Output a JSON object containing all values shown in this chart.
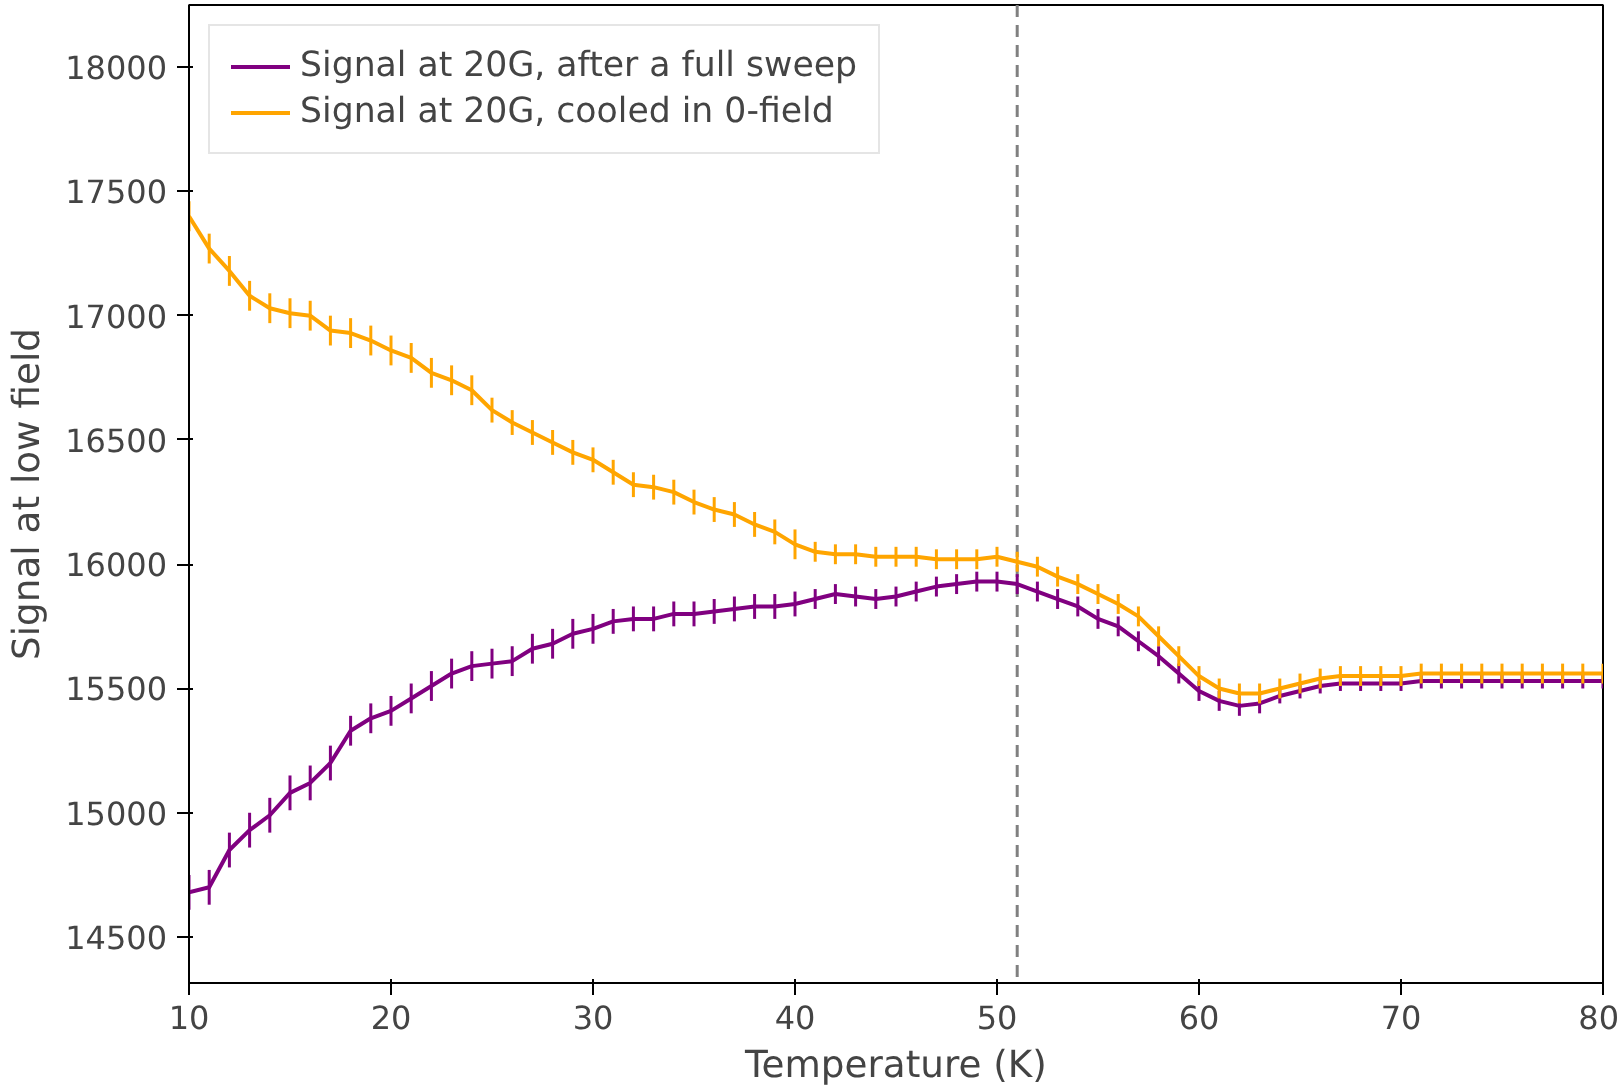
{
  "chart_data": {
    "type": "line",
    "xlabel": "Temperature (K)",
    "ylabel": "Signal at low field",
    "x": [
      10,
      11,
      12,
      13,
      14,
      15,
      16,
      17,
      18,
      19,
      20,
      21,
      22,
      23,
      24,
      25,
      26,
      27,
      28,
      29,
      30,
      31,
      32,
      33,
      34,
      35,
      36,
      37,
      38,
      39,
      40,
      41,
      42,
      43,
      44,
      45,
      46,
      47,
      48,
      49,
      50,
      51,
      52,
      53,
      54,
      55,
      56,
      57,
      58,
      59,
      60,
      61,
      62,
      63,
      64,
      65,
      66,
      67,
      68,
      69,
      70,
      71,
      72,
      73,
      74,
      75,
      76,
      77,
      78,
      79,
      80
    ],
    "series": [
      {
        "name": "Signal at 20G, after a full sweep",
        "color": "#800080",
        "values": [
          14680,
          14700,
          14850,
          14930,
          14990,
          15080,
          15120,
          15200,
          15330,
          15380,
          15410,
          15460,
          15510,
          15560,
          15590,
          15600,
          15610,
          15660,
          15680,
          15720,
          15740,
          15770,
          15780,
          15780,
          15800,
          15800,
          15810,
          15820,
          15830,
          15830,
          15840,
          15860,
          15880,
          15870,
          15860,
          15870,
          15890,
          15910,
          15920,
          15930,
          15930,
          15920,
          15890,
          15860,
          15830,
          15780,
          15750,
          15690,
          15630,
          15560,
          15490,
          15450,
          15430,
          15440,
          15470,
          15490,
          15510,
          15520,
          15520,
          15520,
          15520,
          15530,
          15530,
          15530,
          15530,
          15530,
          15530,
          15530,
          15530,
          15530,
          15530
        ],
        "errors": [
          70,
          70,
          70,
          70,
          70,
          70,
          70,
          70,
          60,
          60,
          60,
          60,
          60,
          60,
          60,
          60,
          60,
          60,
          60,
          60,
          60,
          50,
          50,
          50,
          50,
          50,
          50,
          50,
          50,
          50,
          50,
          40,
          40,
          40,
          40,
          40,
          40,
          40,
          40,
          40,
          40,
          40,
          40,
          40,
          40,
          40,
          40,
          40,
          40,
          40,
          40,
          40,
          40,
          40,
          30,
          30,
          30,
          30,
          30,
          30,
          30,
          30,
          30,
          30,
          30,
          30,
          30,
          30,
          30,
          30,
          30
        ]
      },
      {
        "name": "Signal at 20G, cooled in 0-field",
        "color": "#ffa500",
        "values": [
          17400,
          17270,
          17180,
          17080,
          17030,
          17010,
          17000,
          16940,
          16930,
          16900,
          16860,
          16830,
          16770,
          16740,
          16700,
          16620,
          16570,
          16530,
          16490,
          16450,
          16420,
          16370,
          16320,
          16310,
          16290,
          16250,
          16220,
          16200,
          16160,
          16130,
          16080,
          16050,
          16040,
          16040,
          16030,
          16030,
          16030,
          16020,
          16020,
          16020,
          16030,
          16010,
          15990,
          15950,
          15920,
          15880,
          15840,
          15790,
          15710,
          15630,
          15550,
          15500,
          15480,
          15480,
          15500,
          15520,
          15540,
          15550,
          15550,
          15550,
          15550,
          15560,
          15560,
          15560,
          15560,
          15560,
          15560,
          15560,
          15560,
          15560,
          15560
        ],
        "errors": [
          60,
          60,
          60,
          60,
          60,
          60,
          60,
          60,
          60,
          60,
          60,
          60,
          60,
          60,
          60,
          50,
          50,
          50,
          50,
          50,
          50,
          50,
          50,
          50,
          50,
          50,
          50,
          50,
          50,
          50,
          60,
          40,
          40,
          40,
          40,
          40,
          40,
          40,
          40,
          40,
          40,
          40,
          40,
          40,
          40,
          40,
          40,
          40,
          40,
          40,
          40,
          40,
          40,
          40,
          40,
          40,
          40,
          40,
          40,
          40,
          40,
          40,
          40,
          40,
          40,
          40,
          40,
          40,
          40,
          40,
          40
        ]
      }
    ],
    "xlim": [
      10,
      80
    ],
    "ylim": [
      14315,
      18250
    ],
    "xticks": [
      10,
      20,
      30,
      40,
      50,
      60,
      70,
      80
    ],
    "yticks": [
      14500,
      15000,
      15500,
      16000,
      16500,
      17000,
      17500,
      18000
    ],
    "ref_lines": [
      {
        "axis": "x",
        "value": 51,
        "color": "#808080",
        "line_style": "dashed"
      }
    ],
    "legend": "top left",
    "grid": false
  }
}
